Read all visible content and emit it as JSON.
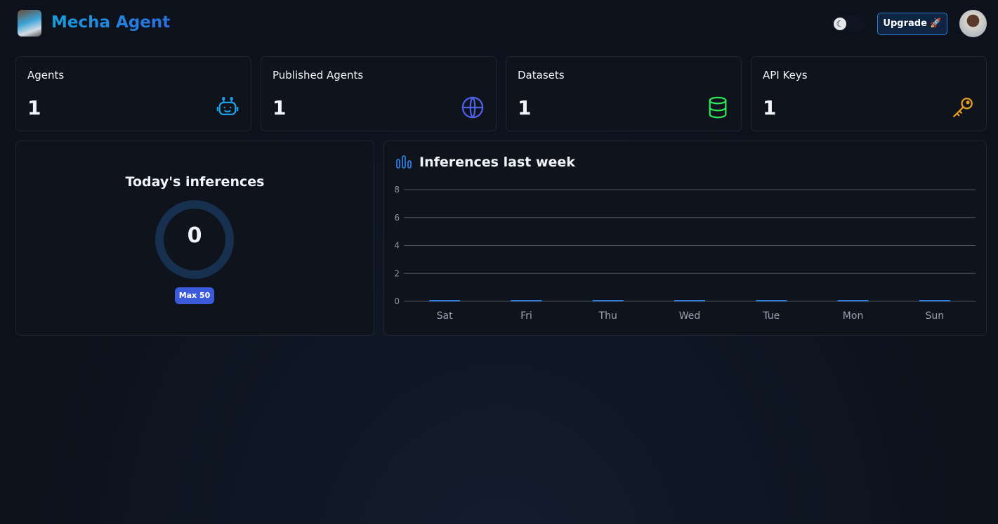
{
  "header": {
    "brand": "Mecha Agent",
    "upgrade_label": "Upgrade 🚀",
    "theme_icon": "moon-icon"
  },
  "stats": [
    {
      "label": "Agents",
      "value": "1",
      "icon": "robot-icon",
      "color": "#1ea0e6"
    },
    {
      "label": "Published Agents",
      "value": "1",
      "icon": "globe-icon",
      "color": "#4f5fe6"
    },
    {
      "label": "Datasets",
      "value": "1",
      "icon": "database-icon",
      "color": "#2ee65a"
    },
    {
      "label": "API Keys",
      "value": "1",
      "icon": "key-icon",
      "color": "#e6a01e"
    }
  ],
  "today": {
    "title": "Today's inferences",
    "value": "0",
    "max_label": "Max 50",
    "fraction": 0
  },
  "chart_data": {
    "type": "bar",
    "title": "Inferences last week",
    "categories": [
      "Sat",
      "Fri",
      "Thu",
      "Wed",
      "Tue",
      "Mon",
      "Sun"
    ],
    "values": [
      0,
      0,
      0,
      0,
      0,
      0,
      0
    ],
    "ylim": [
      0,
      8
    ],
    "yticks": [
      "0",
      "2",
      "4",
      "6",
      "8"
    ],
    "grid": true,
    "color": "#2b7de0"
  }
}
